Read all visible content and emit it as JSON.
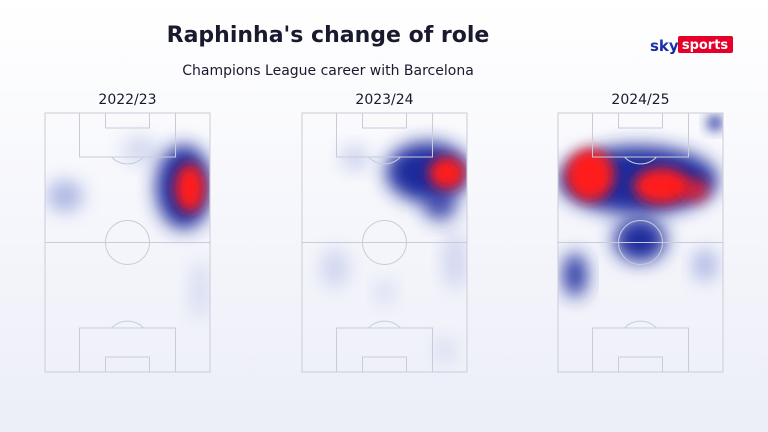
{
  "header": {
    "title": "Raphinha's change of role",
    "subtitle": "Champions League career with Barcelona"
  },
  "logo": {
    "brand": "sky",
    "product": "sports"
  },
  "panels": [
    {
      "label": "2022/23"
    },
    {
      "label": "2023/24"
    },
    {
      "label": "2024/25"
    }
  ]
}
